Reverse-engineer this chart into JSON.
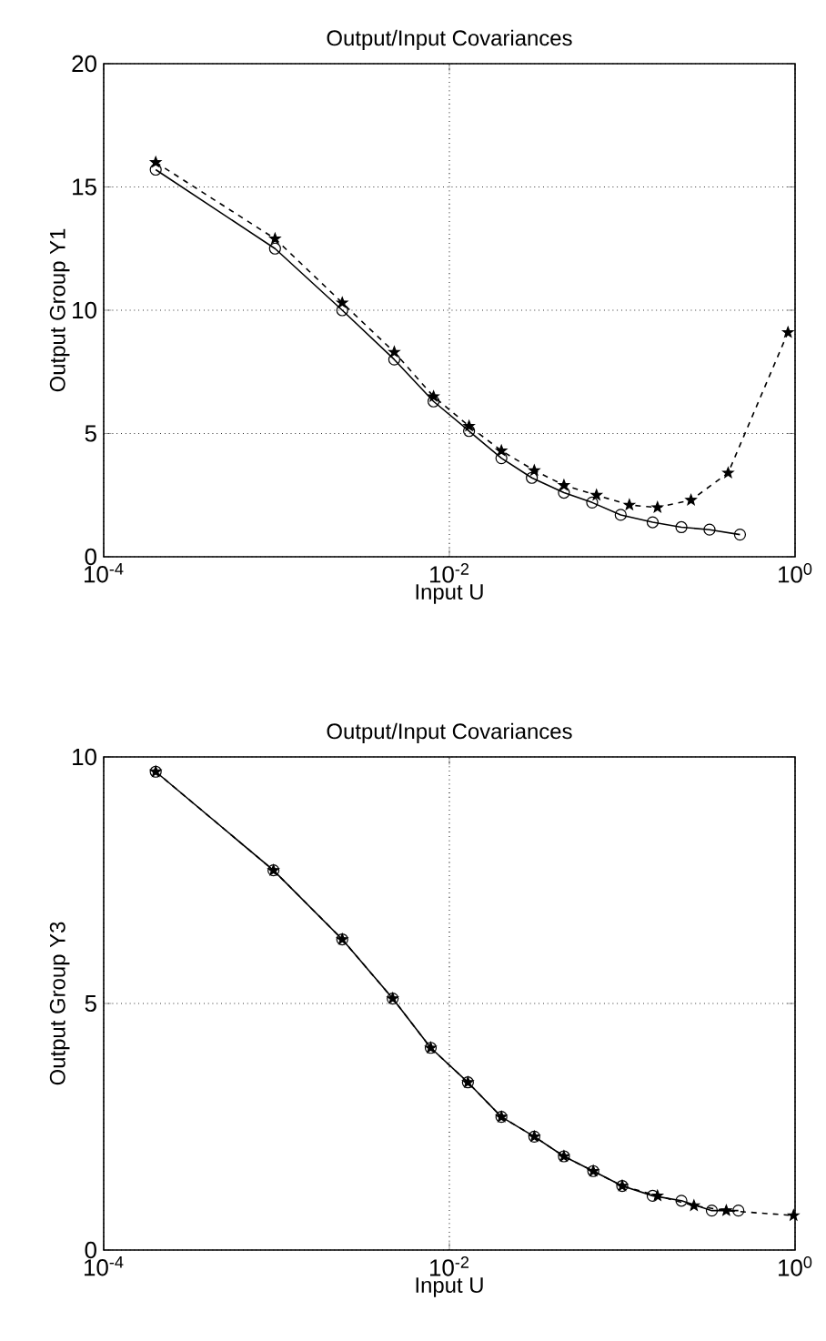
{
  "chart_data": [
    {
      "type": "line",
      "title": "Output/Input Covariances",
      "xlabel": "Input U",
      "ylabel": "Output Group Y1",
      "log": "x",
      "grid": true,
      "xlim": [
        0.0001,
        1
      ],
      "xticks": [
        {
          "value": 0.0001,
          "label": "10$^{-4}$"
        },
        {
          "value": 0.01,
          "label": "10$^{-2}$"
        },
        {
          "value": 1,
          "label": "10$^{0}$"
        }
      ],
      "ylim": [
        0,
        20
      ],
      "yticks": [
        0,
        5,
        10,
        15,
        20
      ],
      "series": [
        {
          "color": "#000000",
          "marker": "circle",
          "line_style": "solid",
          "x": [
            0.0002,
            0.00098,
            0.0024,
            0.0048,
            0.0081,
            0.013,
            0.02,
            0.03,
            0.046,
            0.067,
            0.098,
            0.15,
            0.22,
            0.32,
            0.48
          ],
          "values": [
            15.7,
            12.5,
            10.0,
            8.0,
            6.3,
            5.1,
            4.0,
            3.2,
            2.6,
            2.2,
            1.7,
            1.4,
            1.2,
            1.1,
            0.9
          ]
        },
        {
          "color": "#000000",
          "marker": "star",
          "line_style": "dashed",
          "x": [
            0.0002,
            0.00098,
            0.0024,
            0.0048,
            0.0081,
            0.013,
            0.02,
            0.031,
            0.046,
            0.071,
            0.11,
            0.16,
            0.25,
            0.41,
            0.91
          ],
          "values": [
            16.0,
            12.9,
            10.3,
            8.3,
            6.5,
            5.3,
            4.3,
            3.5,
            2.9,
            2.5,
            2.1,
            2.0,
            2.3,
            3.4,
            9.1
          ]
        }
      ]
    },
    {
      "type": "line",
      "title": "Output/Input Covariances",
      "xlabel": "Input U",
      "ylabel": "Output Group Y3",
      "log": "x",
      "grid": true,
      "xlim": [
        0.0001,
        1
      ],
      "xticks": [
        {
          "value": 0.0001,
          "label": "10$^{-4}$"
        },
        {
          "value": 0.01,
          "label": "10$^{-2}$"
        },
        {
          "value": 1,
          "label": "10$^{0}$"
        }
      ],
      "ylim": [
        0,
        10
      ],
      "yticks": [
        0,
        5,
        10
      ],
      "series": [
        {
          "color": "#000000",
          "marker": "circle",
          "line_style": "solid",
          "x": [
            0.0002,
            0.00096,
            0.0024,
            0.0047,
            0.0078,
            0.0128,
            0.02,
            0.031,
            0.046,
            0.068,
            0.1,
            0.15,
            0.22,
            0.33,
            0.47
          ],
          "values": [
            9.7,
            7.7,
            6.3,
            5.1,
            4.1,
            3.4,
            2.7,
            2.3,
            1.9,
            1.6,
            1.3,
            1.1,
            1.0,
            0.8,
            0.8
          ]
        },
        {
          "color": "#000000",
          "marker": "star",
          "line_style": "dashed",
          "x": [
            0.0002,
            0.00096,
            0.0024,
            0.0047,
            0.0078,
            0.0128,
            0.02,
            0.031,
            0.046,
            0.068,
            0.1,
            0.16,
            0.26,
            0.4,
            0.98
          ],
          "values": [
            9.7,
            7.7,
            6.3,
            5.1,
            4.1,
            3.4,
            2.7,
            2.3,
            1.9,
            1.6,
            1.3,
            1.1,
            0.9,
            0.8,
            0.7
          ]
        }
      ]
    }
  ]
}
